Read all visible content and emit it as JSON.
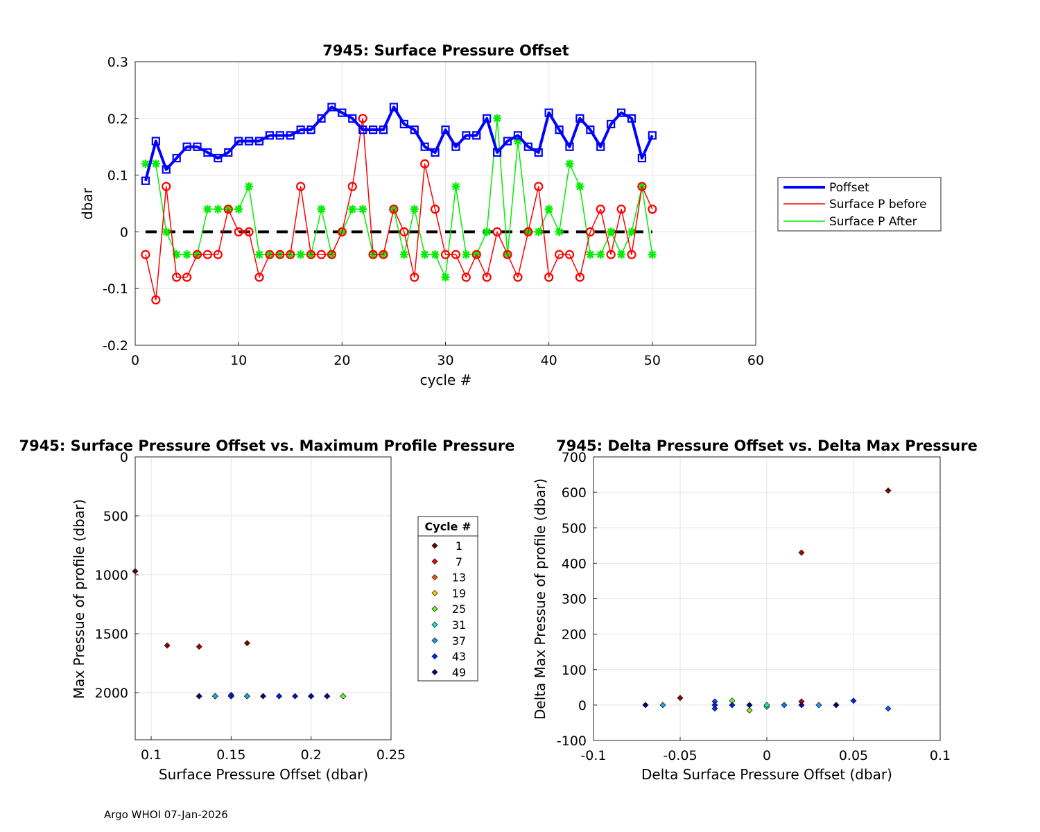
{
  "footer": "Argo WHOI 07-Jan-2026",
  "chart_data": [
    {
      "type": "line",
      "title": "7945: Surface Pressure Offset",
      "xlabel": "cycle #",
      "ylabel": "dbar",
      "xlim": [
        0,
        60
      ],
      "ylim": [
        -0.2,
        0.3
      ],
      "xticks": [
        0,
        10,
        20,
        30,
        40,
        50,
        60
      ],
      "yticks": [
        -0.2,
        -0.1,
        0,
        0.1,
        0.2,
        0.3
      ],
      "grid": true,
      "legend_position": "outside-right",
      "reference_line": {
        "y": 0,
        "style": "dashed",
        "color": "#000000"
      },
      "series": [
        {
          "name": "Poffset",
          "color": "#0000ff",
          "marker": "square",
          "x": [
            1,
            2,
            3,
            4,
            5,
            6,
            7,
            8,
            9,
            10,
            11,
            12,
            13,
            14,
            15,
            16,
            17,
            18,
            19,
            20,
            21,
            22,
            23,
            24,
            25,
            26,
            27,
            28,
            29,
            30,
            31,
            32,
            33,
            34,
            35,
            36,
            37,
            38,
            39,
            40,
            41,
            42,
            43,
            44,
            45,
            46,
            47,
            48,
            49,
            50
          ],
          "values": [
            0.09,
            0.16,
            0.11,
            0.13,
            0.15,
            0.15,
            0.14,
            0.13,
            0.14,
            0.16,
            0.16,
            0.16,
            0.17,
            0.17,
            0.17,
            0.18,
            0.18,
            0.2,
            0.22,
            0.21,
            0.2,
            0.18,
            0.18,
            0.18,
            0.22,
            0.19,
            0.18,
            0.15,
            0.14,
            0.18,
            0.15,
            0.17,
            0.17,
            0.2,
            0.14,
            0.16,
            0.17,
            0.15,
            0.14,
            0.21,
            0.18,
            0.15,
            0.2,
            0.18,
            0.15,
            0.19,
            0.21,
            0.2,
            0.13,
            0.17
          ]
        },
        {
          "name": "Surface P before",
          "color": "#ff0000",
          "marker": "circle",
          "x": [
            1,
            2,
            3,
            4,
            5,
            6,
            7,
            8,
            9,
            10,
            11,
            12,
            13,
            14,
            15,
            16,
            17,
            18,
            19,
            20,
            21,
            22,
            23,
            24,
            25,
            26,
            27,
            28,
            29,
            30,
            31,
            32,
            33,
            34,
            35,
            36,
            37,
            38,
            39,
            40,
            41,
            42,
            43,
            44,
            45,
            46,
            47,
            48,
            49,
            50
          ],
          "values": [
            -0.04,
            -0.12,
            0.08,
            -0.08,
            -0.08,
            -0.04,
            -0.04,
            -0.04,
            0.04,
            0,
            0,
            -0.08,
            -0.04,
            -0.04,
            -0.04,
            0.08,
            -0.04,
            -0.04,
            -0.04,
            0,
            0.08,
            0.2,
            -0.04,
            -0.04,
            0.04,
            0,
            -0.08,
            0.12,
            0.04,
            -0.04,
            -0.04,
            -0.08,
            -0.04,
            -0.08,
            0,
            -0.04,
            -0.08,
            0,
            0.08,
            -0.08,
            -0.04,
            -0.04,
            -0.08,
            0,
            0.04,
            -0.04,
            0.04,
            -0.04,
            0.08,
            0.04
          ]
        },
        {
          "name": "Surface P After",
          "color": "#00ee00",
          "marker": "asterisk",
          "x": [
            1,
            2,
            3,
            4,
            5,
            6,
            7,
            8,
            9,
            10,
            11,
            12,
            13,
            14,
            15,
            16,
            17,
            18,
            19,
            20,
            21,
            22,
            23,
            24,
            25,
            26,
            27,
            28,
            29,
            30,
            31,
            32,
            33,
            34,
            35,
            36,
            37,
            38,
            39,
            40,
            41,
            42,
            43,
            44,
            45,
            46,
            47,
            48,
            49,
            50
          ],
          "values": [
            0.12,
            0.12,
            0,
            -0.04,
            -0.04,
            -0.04,
            0.04,
            0.04,
            0.04,
            0.04,
            0.08,
            -0.04,
            -0.04,
            -0.04,
            -0.04,
            -0.04,
            -0.04,
            0.04,
            -0.04,
            0,
            0.04,
            0.04,
            -0.04,
            -0.04,
            0.04,
            -0.04,
            0.04,
            -0.04,
            -0.04,
            -0.08,
            0.08,
            -0.04,
            -0.04,
            0,
            0.2,
            -0.04,
            0.16,
            0,
            0,
            0.04,
            0,
            0.12,
            0.08,
            -0.04,
            -0.04,
            0,
            -0.04,
            0,
            0.08,
            -0.04
          ]
        }
      ]
    },
    {
      "type": "scatter",
      "title": "7945: Surface Pressure Offset vs. Maximum Profile Pressure",
      "xlabel": "Surface Pressure Offset (dbar)",
      "ylabel": "Max Pressue of profile (dbar)",
      "xlim": [
        0.09,
        0.25
      ],
      "ylim": [
        0,
        2400
      ],
      "y_reversed": true,
      "xticks": [
        0.1,
        0.15,
        0.2,
        0.25
      ],
      "yticks": [
        0,
        500,
        1000,
        1500,
        2000
      ],
      "grid": true,
      "colorby": "cycle",
      "points": [
        {
          "cycle": 1,
          "x": 0.09,
          "y": 970
        },
        {
          "cycle": 2,
          "x": 0.16,
          "y": 1580
        },
        {
          "cycle": 3,
          "x": 0.11,
          "y": 1600
        },
        {
          "cycle": 4,
          "x": 0.13,
          "y": 1610
        },
        {
          "cycle": 5,
          "x": 0.15,
          "y": 2030
        },
        {
          "cycle": 6,
          "x": 0.15,
          "y": 2030
        },
        {
          "cycle": 7,
          "x": 0.14,
          "y": 2030
        },
        {
          "cycle": 8,
          "x": 0.13,
          "y": 2030
        },
        {
          "cycle": 9,
          "x": 0.14,
          "y": 2030
        },
        {
          "cycle": 10,
          "x": 0.16,
          "y": 2030
        },
        {
          "cycle": 18,
          "x": 0.2,
          "y": 2030
        },
        {
          "cycle": 19,
          "x": 0.22,
          "y": 2030
        },
        {
          "cycle": 20,
          "x": 0.21,
          "y": 2030
        },
        {
          "cycle": 25,
          "x": 0.22,
          "y": 2030
        },
        {
          "cycle": 29,
          "x": 0.14,
          "y": 2030
        },
        {
          "cycle": 30,
          "x": 0.18,
          "y": 2030
        },
        {
          "cycle": 35,
          "x": 0.14,
          "y": 2030
        },
        {
          "cycle": 36,
          "x": 0.16,
          "y": 2030
        },
        {
          "cycle": 38,
          "x": 0.15,
          "y": 2030
        },
        {
          "cycle": 40,
          "x": 0.21,
          "y": 2030
        },
        {
          "cycle": 42,
          "x": 0.15,
          "y": 2030
        },
        {
          "cycle": 43,
          "x": 0.2,
          "y": 2030
        },
        {
          "cycle": 44,
          "x": 0.18,
          "y": 2030
        },
        {
          "cycle": 45,
          "x": 0.15,
          "y": 2020
        },
        {
          "cycle": 46,
          "x": 0.19,
          "y": 2030
        },
        {
          "cycle": 47,
          "x": 0.21,
          "y": 2030
        },
        {
          "cycle": 48,
          "x": 0.2,
          "y": 2030
        },
        {
          "cycle": 49,
          "x": 0.13,
          "y": 2030
        },
        {
          "cycle": 50,
          "x": 0.17,
          "y": 2030
        }
      ]
    },
    {
      "type": "scatter",
      "title": "7945: Delta Pressure Offset vs. Delta Max Pressure",
      "xlabel": "Delta Surface Pressure Offset (dbar)",
      "ylabel": "Delta Max Pressue of profile (dbar)",
      "xlim": [
        -0.1,
        0.1
      ],
      "ylim": [
        -100,
        700
      ],
      "xticks": [
        -0.1,
        -0.05,
        0,
        0.05,
        0.1
      ],
      "yticks": [
        -100,
        0,
        100,
        200,
        300,
        400,
        500,
        600,
        700
      ],
      "grid": true,
      "colorby": "cycle",
      "points": [
        {
          "cycle": 2,
          "x": 0.07,
          "y": 605
        },
        {
          "cycle": 3,
          "x": -0.05,
          "y": 20
        },
        {
          "cycle": 4,
          "x": 0.02,
          "y": 430
        },
        {
          "cycle": 5,
          "x": 0.02,
          "y": 10
        },
        {
          "cycle": 24,
          "x": -0.01,
          "y": -15
        },
        {
          "cycle": 25,
          "x": -0.02,
          "y": 12
        },
        {
          "cycle": 26,
          "x": 0,
          "y": -5
        },
        {
          "cycle": 31,
          "x": 0,
          "y": 0
        },
        {
          "cycle": 36,
          "x": -0.06,
          "y": 0
        },
        {
          "cycle": 37,
          "x": 0.03,
          "y": 0
        },
        {
          "cycle": 39,
          "x": 0.01,
          "y": 0
        },
        {
          "cycle": 40,
          "x": 0.07,
          "y": -10
        },
        {
          "cycle": 41,
          "x": -0.03,
          "y": 10
        },
        {
          "cycle": 42,
          "x": -0.03,
          "y": -10
        },
        {
          "cycle": 43,
          "x": 0.05,
          "y": 12
        },
        {
          "cycle": 44,
          "x": -0.02,
          "y": 0
        },
        {
          "cycle": 45,
          "x": -0.03,
          "y": 0
        },
        {
          "cycle": 47,
          "x": 0.02,
          "y": 0
        },
        {
          "cycle": 48,
          "x": -0.01,
          "y": 0
        },
        {
          "cycle": 49,
          "x": -0.07,
          "y": 0
        },
        {
          "cycle": 50,
          "x": 0.04,
          "y": 0
        }
      ]
    }
  ],
  "cycle_legend": {
    "title": "Cycle #",
    "entries": [
      {
        "label": "1",
        "color": "#660000"
      },
      {
        "label": "7",
        "color": "#ee0000"
      },
      {
        "label": "13",
        "color": "#ff5500"
      },
      {
        "label": "19",
        "color": "#ffcc00"
      },
      {
        "label": "25",
        "color": "#66ff22"
      },
      {
        "label": "31",
        "color": "#11eebb"
      },
      {
        "label": "37",
        "color": "#1199ff"
      },
      {
        "label": "43",
        "color": "#0022ff"
      },
      {
        "label": "49",
        "color": "#000077"
      }
    ]
  }
}
